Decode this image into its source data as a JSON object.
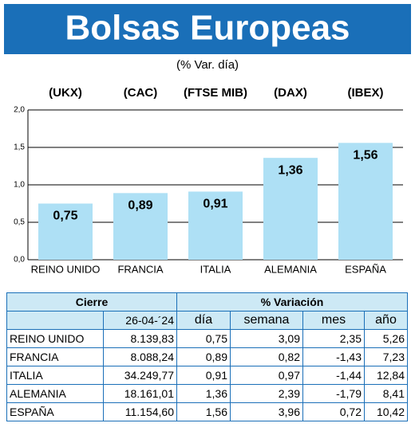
{
  "chart_data": {
    "type": "bar",
    "title": "Bolsas Europeas",
    "subtitle": "(% Var. día)",
    "codes": [
      "(UKX)",
      "(CAC)",
      "(FTSE MIB)",
      "(DAX)",
      "(IBEX)"
    ],
    "categories": [
      "REINO UNIDO",
      "FRANCIA",
      "ITALIA",
      "ALEMANIA",
      "ESPAÑA"
    ],
    "values": [
      0.75,
      0.89,
      0.91,
      1.36,
      1.56
    ],
    "value_labels": [
      "0,75",
      "0,89",
      "0,91",
      "1,36",
      "1,56"
    ],
    "color": "#aee0f5",
    "ylim": [
      0,
      2
    ],
    "yticks": [
      {
        "value": 0,
        "label": "0,0"
      },
      {
        "value": 0.5,
        "label": "0,5"
      },
      {
        "value": 1,
        "label": "1,0"
      },
      {
        "value": 1.5,
        "label": "1,5"
      },
      {
        "value": 2,
        "label": "2,0"
      }
    ],
    "grid": true
  },
  "table": {
    "header": [
      "Cierre",
      "% Variación"
    ],
    "date": "26-04-´24",
    "columns": [
      "día",
      "semana",
      "mes",
      "año"
    ],
    "rows": [
      [
        "REINO UNIDO",
        "8.139,83",
        "0,75",
        "3,09",
        "2,35",
        "5,26"
      ],
      [
        "FRANCIA",
        "8.088,24",
        "0,89",
        "0,82",
        "-1,43",
        "7,23"
      ],
      [
        "ITALIA",
        "34.249,77",
        "0,91",
        "0,97",
        "-1,44",
        "12,84"
      ],
      [
        "ALEMANIA",
        "18.161,01",
        "1,36",
        "2,39",
        "-1,79",
        "8,41"
      ],
      [
        "ESPAÑA",
        "11.154,60",
        "1,56",
        "3,96",
        "0,72",
        "10,42"
      ]
    ]
  }
}
